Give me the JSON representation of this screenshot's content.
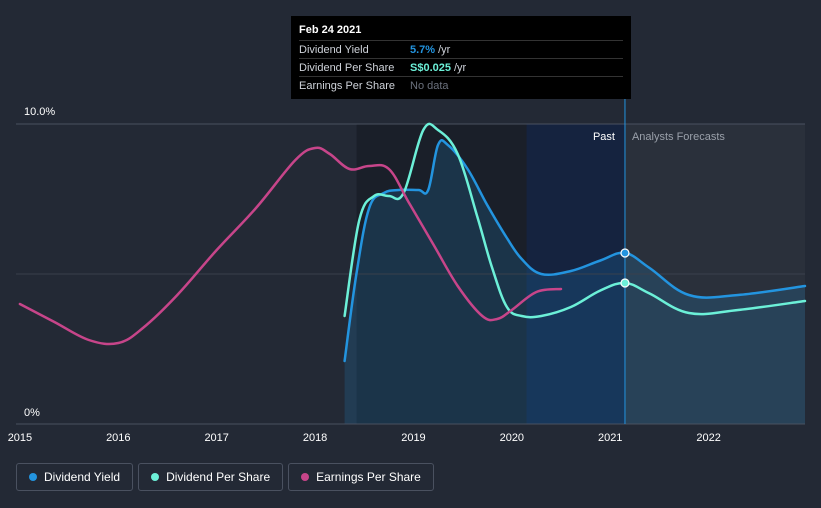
{
  "tooltip": {
    "date": "Feb 24 2021",
    "rows": [
      {
        "label": "Dividend Yield",
        "value": "5.7%",
        "unit": "/yr",
        "color": "#2394df"
      },
      {
        "label": "Dividend Per Share",
        "value": "S$0.025",
        "unit": "/yr",
        "color": "#6cf0d8"
      },
      {
        "label": "Earnings Per Share",
        "value": "No data",
        "unit": "",
        "color": "#6b717d"
      }
    ]
  },
  "regions": {
    "past_label": "Past",
    "forecast_label": "Analysts Forecasts"
  },
  "legend": [
    {
      "label": "Dividend Yield",
      "color": "#2394df"
    },
    {
      "label": "Dividend Per Share",
      "color": "#6cf0d8"
    },
    {
      "label": "Earnings Per Share",
      "color": "#c7458a"
    }
  ],
  "chart_data": {
    "type": "line",
    "x_ticks": [
      "2015",
      "2016",
      "2017",
      "2018",
      "2019",
      "2020",
      "2021",
      "2022"
    ],
    "y_ticks": [
      "0%",
      "10.0%"
    ],
    "ylim": [
      0,
      10
    ],
    "xlim": [
      2014.96,
      2022.98
    ],
    "past_end": 2021.15,
    "series": [
      {
        "name": "Dividend Yield",
        "color": "#2394df",
        "values": [
          [
            2018.3,
            2.1
          ],
          [
            2018.42,
            5.0
          ],
          [
            2018.55,
            7.2
          ],
          [
            2018.7,
            7.7
          ],
          [
            2018.85,
            7.8
          ],
          [
            2019.05,
            7.8
          ],
          [
            2019.15,
            7.8
          ],
          [
            2019.25,
            9.3
          ],
          [
            2019.35,
            9.3
          ],
          [
            2019.55,
            8.5
          ],
          [
            2019.75,
            7.3
          ],
          [
            2019.95,
            6.2
          ],
          [
            2020.1,
            5.5
          ],
          [
            2020.3,
            5.0
          ],
          [
            2020.6,
            5.1
          ],
          [
            2020.9,
            5.45
          ],
          [
            2021.15,
            5.7
          ],
          [
            2021.4,
            5.2
          ],
          [
            2021.8,
            4.3
          ],
          [
            2022.3,
            4.3
          ],
          [
            2022.98,
            4.6
          ]
        ]
      },
      {
        "name": "Dividend Per Share",
        "color": "#6cf0d8",
        "values": [
          [
            2018.3,
            3.6
          ],
          [
            2018.45,
            6.8
          ],
          [
            2018.6,
            7.6
          ],
          [
            2018.75,
            7.6
          ],
          [
            2018.9,
            7.7
          ],
          [
            2019.1,
            9.8
          ],
          [
            2019.25,
            9.8
          ],
          [
            2019.45,
            9.0
          ],
          [
            2019.65,
            6.9
          ],
          [
            2019.8,
            5.2
          ],
          [
            2019.95,
            3.9
          ],
          [
            2020.1,
            3.6
          ],
          [
            2020.3,
            3.6
          ],
          [
            2020.6,
            3.9
          ],
          [
            2020.9,
            4.45
          ],
          [
            2021.15,
            4.7
          ],
          [
            2021.4,
            4.35
          ],
          [
            2021.8,
            3.7
          ],
          [
            2022.3,
            3.8
          ],
          [
            2022.98,
            4.1
          ]
        ]
      },
      {
        "name": "Earnings Per Share",
        "color": "#c7458a",
        "values": [
          [
            2015,
            4.0
          ],
          [
            2015.35,
            3.4
          ],
          [
            2015.7,
            2.8
          ],
          [
            2016.0,
            2.7
          ],
          [
            2016.25,
            3.2
          ],
          [
            2016.6,
            4.3
          ],
          [
            2017.0,
            5.8
          ],
          [
            2017.4,
            7.2
          ],
          [
            2017.8,
            8.8
          ],
          [
            2018.0,
            9.2
          ],
          [
            2018.15,
            9.0
          ],
          [
            2018.35,
            8.5
          ],
          [
            2018.55,
            8.6
          ],
          [
            2018.75,
            8.5
          ],
          [
            2018.95,
            7.4
          ],
          [
            2019.2,
            6.0
          ],
          [
            2019.45,
            4.6
          ],
          [
            2019.7,
            3.6
          ],
          [
            2019.85,
            3.5
          ],
          [
            2020.0,
            3.8
          ],
          [
            2020.25,
            4.4
          ],
          [
            2020.5,
            4.5
          ]
        ]
      }
    ]
  }
}
